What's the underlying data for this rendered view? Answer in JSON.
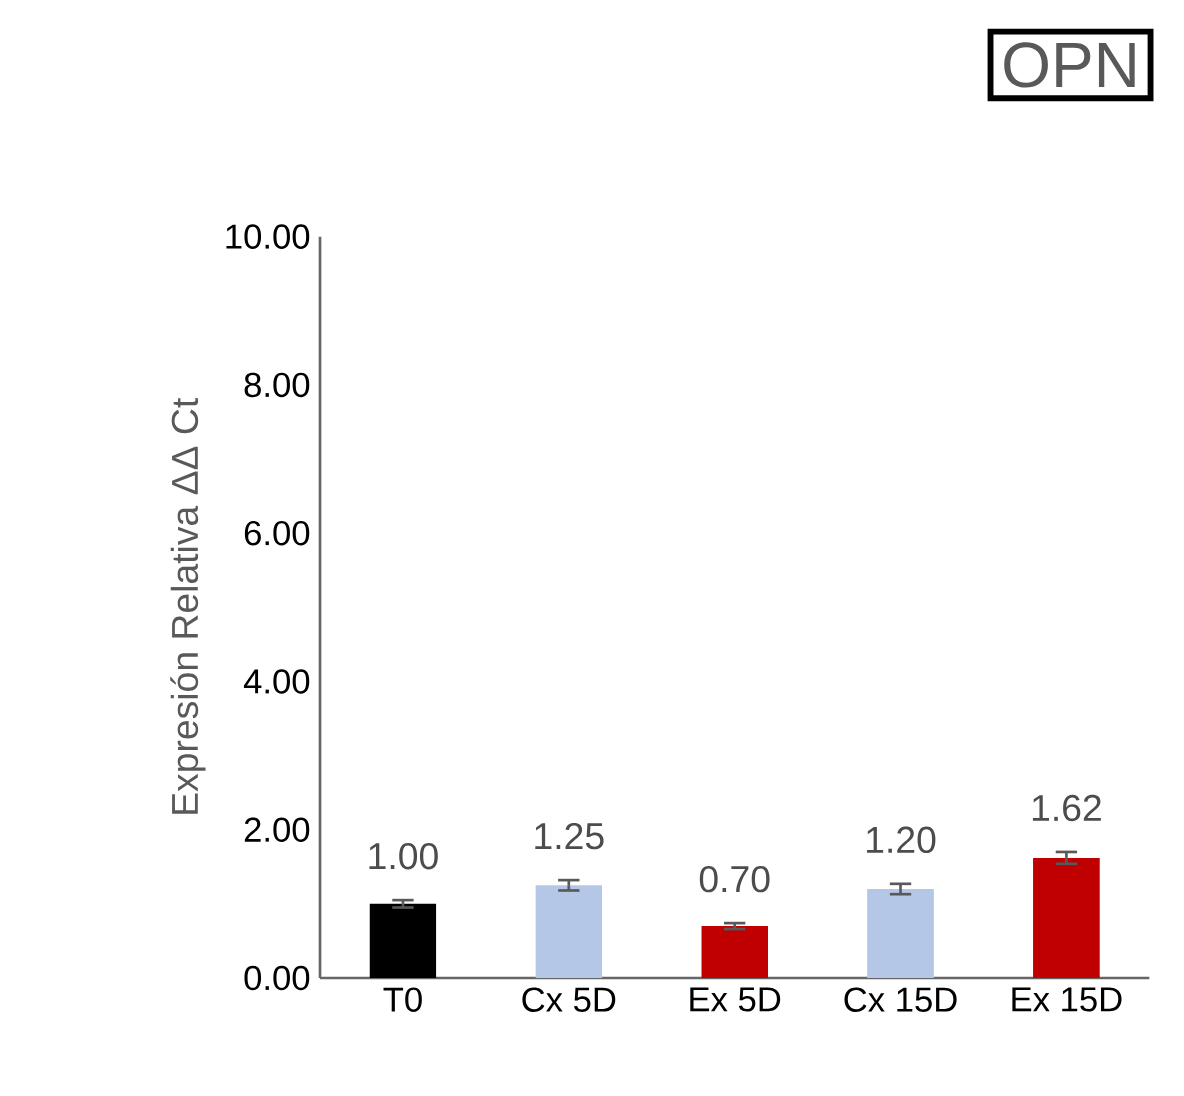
{
  "chart_data": {
    "type": "bar",
    "title": "OPN",
    "ylabel": "Expresión Relativa ΔΔ Ct",
    "categories": [
      "T0",
      "Cx 5D",
      "Ex 5D",
      "Cx 15D",
      "Ex 15D"
    ],
    "values": [
      1.0,
      1.25,
      0.7,
      1.2,
      1.62
    ],
    "value_labels": [
      "1.00",
      "1.25",
      "0.70",
      "1.20",
      "1.62"
    ],
    "errors": [
      0.05,
      0.07,
      0.04,
      0.07,
      0.08
    ],
    "colors": [
      "#000000",
      "#b4c7e7",
      "#c00000",
      "#b4c7e7",
      "#c00000"
    ],
    "ylim": [
      0,
      10
    ],
    "yticks": [
      {
        "value": 0,
        "label": "0.00"
      },
      {
        "value": 2,
        "label": "2.00"
      },
      {
        "value": 4,
        "label": "4.00"
      },
      {
        "value": 6,
        "label": "6.00"
      },
      {
        "value": 8,
        "label": "8.00"
      },
      {
        "value": 10,
        "label": "10.00"
      }
    ],
    "grid": false
  }
}
